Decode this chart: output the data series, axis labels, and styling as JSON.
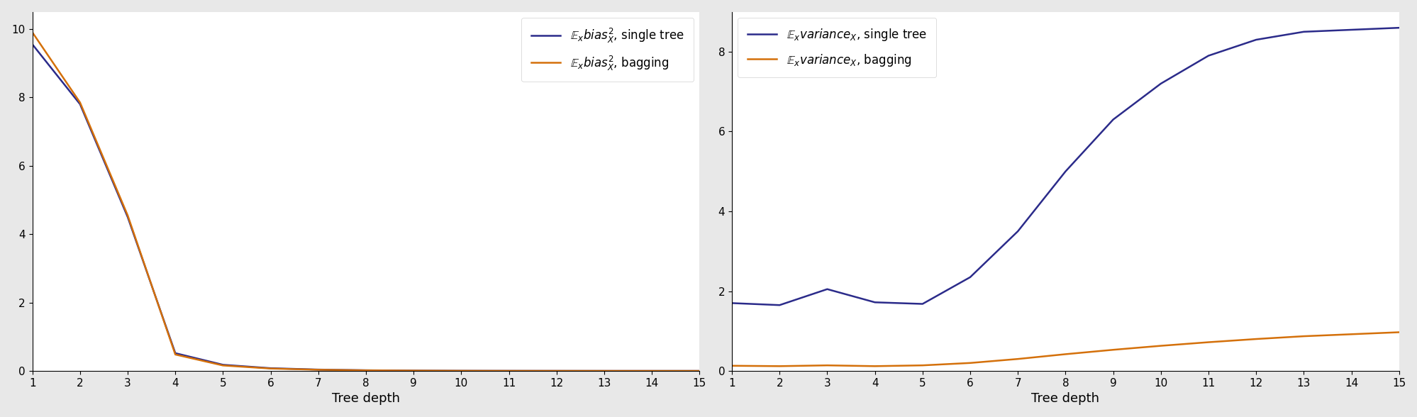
{
  "depths": [
    1,
    2,
    3,
    4,
    5,
    6,
    7,
    8,
    9,
    10,
    11,
    12,
    13,
    14,
    15
  ],
  "bias_single": [
    9.55,
    7.8,
    4.5,
    0.52,
    0.18,
    0.08,
    0.04,
    0.02,
    0.01,
    0.005,
    0.003,
    0.002,
    0.001,
    0.001,
    0.001
  ],
  "bias_bagging": [
    9.9,
    7.85,
    4.55,
    0.48,
    0.16,
    0.07,
    0.035,
    0.018,
    0.009,
    0.004,
    0.002,
    0.0015,
    0.001,
    0.0005,
    0.0003
  ],
  "var_single": [
    1.7,
    1.65,
    2.05,
    1.72,
    1.68,
    2.35,
    3.5,
    5.0,
    6.3,
    7.2,
    7.9,
    8.3,
    8.5,
    8.55,
    8.6
  ],
  "var_bagging": [
    0.13,
    0.12,
    0.14,
    0.12,
    0.14,
    0.2,
    0.3,
    0.42,
    0.53,
    0.63,
    0.72,
    0.8,
    0.87,
    0.92,
    0.97
  ],
  "color_single": "#2b2b8a",
  "color_bagging": "#d4700a",
  "xlabel": "Tree depth",
  "bias_legend_single": "$\\mathbb{E}_x\\mathit{bias}_X^2$, single tree",
  "bias_legend_bagging": "$\\mathbb{E}_x\\mathit{bias}_X^2$, bagging",
  "var_legend_single": "$\\mathbb{E}_x\\mathit{variance}_X$, single tree",
  "var_legend_bagging": "$\\mathbb{E}_x\\mathit{variance}_X$, bagging",
  "bias_ylim": [
    0,
    10.5
  ],
  "var_ylim": [
    0,
    9.0
  ],
  "bias_yticks": [
    0,
    2,
    4,
    6,
    8,
    10
  ],
  "var_yticks": [
    0,
    2,
    4,
    6,
    8
  ],
  "xticks": [
    1,
    2,
    3,
    4,
    5,
    6,
    7,
    8,
    9,
    10,
    11,
    12,
    13,
    14,
    15
  ],
  "fig_facecolor": "#e8e8e8",
  "axes_facecolor": "#ffffff",
  "linewidth": 1.8
}
